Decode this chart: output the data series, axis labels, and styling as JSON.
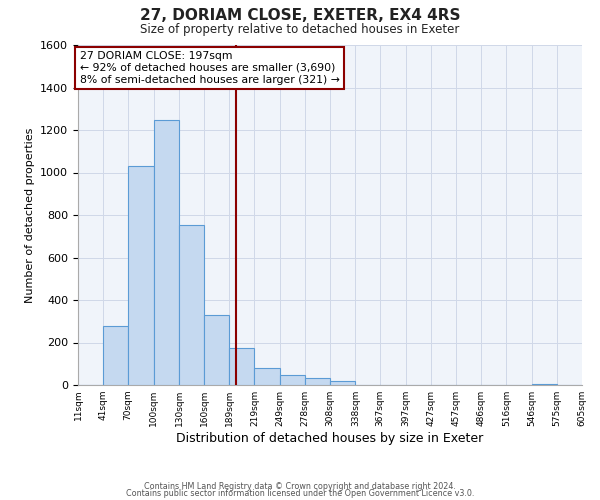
{
  "title": "27, DORIAM CLOSE, EXETER, EX4 4RS",
  "subtitle": "Size of property relative to detached houses in Exeter",
  "xlabel": "Distribution of detached houses by size in Exeter",
  "ylabel": "Number of detached properties",
  "bin_edges": [
    11,
    41,
    70,
    100,
    130,
    160,
    189,
    219,
    249,
    278,
    308,
    338,
    367,
    397,
    427,
    457,
    486,
    516,
    546,
    575,
    605
  ],
  "bin_heights": [
    0,
    280,
    1030,
    1245,
    755,
    330,
    175,
    80,
    48,
    32,
    18,
    0,
    0,
    0,
    0,
    0,
    0,
    0,
    5,
    0
  ],
  "bar_color": "#c5d9f0",
  "bar_edge_color": "#5b9bd5",
  "vline_x": 197,
  "vline_color": "#8b0000",
  "ylim": [
    0,
    1600
  ],
  "yticks": [
    0,
    200,
    400,
    600,
    800,
    1000,
    1200,
    1400,
    1600
  ],
  "annotation_line1": "27 DORIAM CLOSE: 197sqm",
  "annotation_line2": "← 92% of detached houses are smaller (3,690)",
  "annotation_line3": "8% of semi-detached houses are larger (321) →",
  "annotation_box_color": "#8b0000",
  "grid_color": "#d0d8e8",
  "footer1": "Contains HM Land Registry data © Crown copyright and database right 2024.",
  "footer2": "Contains public sector information licensed under the Open Government Licence v3.0.",
  "tick_labels": [
    "11sqm",
    "41sqm",
    "70sqm",
    "100sqm",
    "130sqm",
    "160sqm",
    "189sqm",
    "219sqm",
    "249sqm",
    "278sqm",
    "308sqm",
    "338sqm",
    "367sqm",
    "397sqm",
    "427sqm",
    "457sqm",
    "486sqm",
    "516sqm",
    "546sqm",
    "575sqm",
    "605sqm"
  ]
}
